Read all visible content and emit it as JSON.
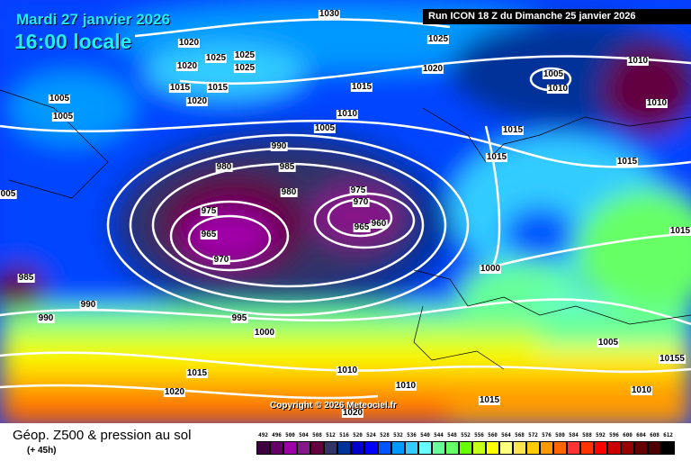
{
  "header": {
    "date": "Mardi 27 janvier 2026",
    "time": "16:00 locale",
    "run": "Run ICON 18 Z du Dimanche 25 janvier 2026"
  },
  "copyright": "Copyright © 2026 Meteociel.fr",
  "footer": {
    "title": "Géop. Z500 & pression au sol",
    "lead": "(+ 45h)"
  },
  "legend": {
    "values": [
      "492",
      "496",
      "500",
      "504",
      "508",
      "512",
      "516",
      "520",
      "524",
      "528",
      "532",
      "536",
      "540",
      "544",
      "548",
      "552",
      "556",
      "560",
      "564",
      "568",
      "572",
      "576",
      "580",
      "584",
      "588",
      "592",
      "596",
      "600",
      "604",
      "608",
      "612"
    ],
    "colors": [
      "#3f0040",
      "#660066",
      "#a000a8",
      "#841888",
      "#640040",
      "#333366",
      "#003399",
      "#0000cc",
      "#0000ff",
      "#0055ff",
      "#0099ff",
      "#33ccff",
      "#66ffff",
      "#66ff99",
      "#66ff66",
      "#66ff00",
      "#c6ff19",
      "#ffff00",
      "#ffff80",
      "#ffe64c",
      "#ffcc00",
      "#ff9900",
      "#ff6600",
      "#ff3333",
      "#ff3300",
      "#ff0000",
      "#cc0000",
      "#990000",
      "#660000",
      "#4d0000",
      "#000000"
    ]
  },
  "isobar_labels": [
    "1030",
    "1025",
    "1020",
    "1020",
    "1025",
    "1025",
    "1025",
    "1015",
    "1015",
    "1020",
    "1020",
    "1015",
    "1010",
    "1005",
    "1005",
    "1005",
    "990",
    "985",
    "980",
    "980",
    "975",
    "970",
    "975",
    "965",
    "965",
    "960",
    "970",
    "985",
    "990",
    "990",
    "995",
    "1000",
    "1000",
    "1015",
    "1015",
    "1015",
    "1005",
    "1010",
    "1010",
    "1010",
    "1015",
    "1020",
    "1010",
    "1010",
    "1015",
    "1020",
    "1005",
    "10155",
    "1010",
    "1015",
    "005"
  ]
}
